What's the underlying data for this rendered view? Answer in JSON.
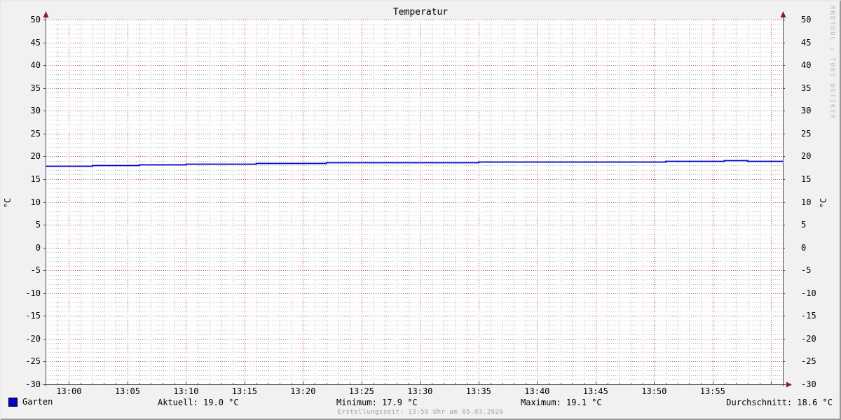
{
  "title": "Temperatur",
  "watermark": "RRDTOOL / TOBI OETIKER",
  "footer": "Erstellungszeit: 13:58 Uhr am 05.03.2026",
  "legend": {
    "series_label": "Garten",
    "series_color": "#0000cc",
    "aktuell": "Aktuell: 19.0 °C",
    "minimum": "Minimum: 17.9 °C",
    "maximum": "Maximum: 19.1 °C",
    "durchschnitt": "Durchschnitt: 18.6 °C"
  },
  "chart_data": {
    "type": "line",
    "title": "Temperatur",
    "ylabel_left": "°C",
    "ylabel_right": "°C",
    "ylim": [
      -30,
      50
    ],
    "y_tick_step": 5,
    "y_ticks": [
      "50",
      "45",
      "40",
      "35",
      "30",
      "25",
      "20",
      "15",
      "10",
      "5",
      "0",
      "-5",
      "-10",
      "-15",
      "-20",
      "-25",
      "-30"
    ],
    "x_ticks": [
      "13:00",
      "13:05",
      "13:10",
      "13:15",
      "13:20",
      "13:25",
      "13:30",
      "13:35",
      "13:40",
      "13:45",
      "13:50",
      "13:55"
    ],
    "x_range": [
      "12:58",
      "14:01"
    ],
    "grid": {
      "major_color": "#dd5555",
      "minor_color": "#bcbcbc",
      "style": "dotted"
    },
    "canvas_color": "#ffffff",
    "axis_color": "#4a4a4a",
    "arrow_color": "#8b2020",
    "series": [
      {
        "name": "Garten",
        "color": "#0000cc",
        "step": true,
        "points": [
          [
            "12:58",
            17.9
          ],
          [
            "13:02",
            18.05
          ],
          [
            "13:06",
            18.2
          ],
          [
            "13:10",
            18.35
          ],
          [
            "13:16",
            18.5
          ],
          [
            "13:22",
            18.65
          ],
          [
            "13:35",
            18.8
          ],
          [
            "13:51",
            18.95
          ],
          [
            "13:56",
            19.1
          ],
          [
            "13:58",
            19.0
          ],
          [
            "14:01",
            19.0
          ]
        ]
      }
    ],
    "stats": {
      "aktuell": 19.0,
      "minimum": 17.9,
      "maximum": 19.1,
      "durchschnitt": 18.6
    }
  }
}
